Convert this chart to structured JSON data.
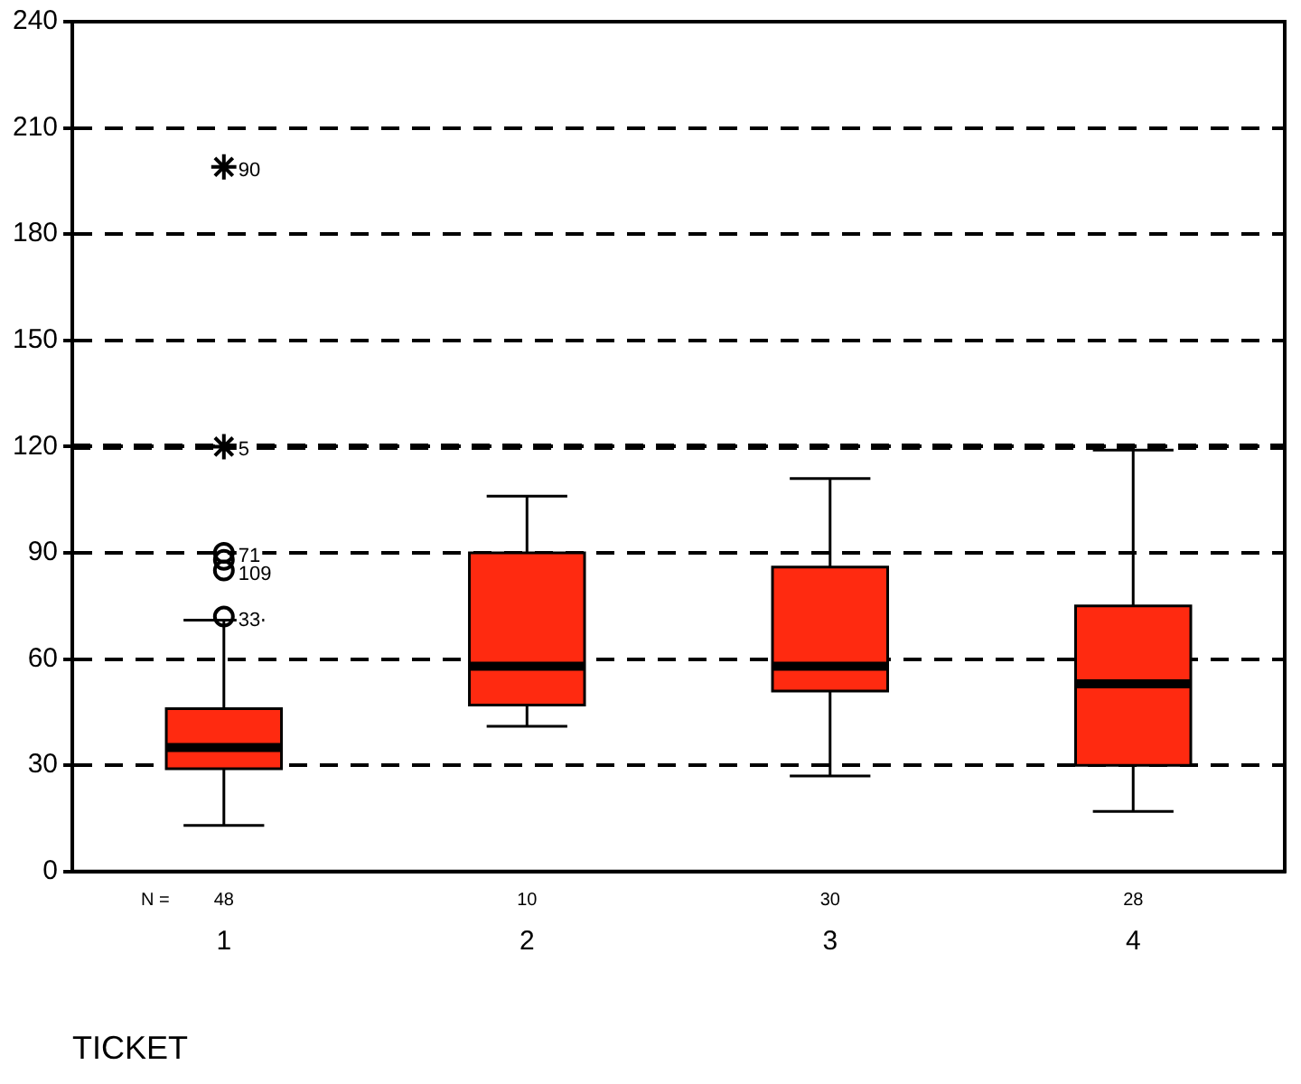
{
  "chart_data": {
    "type": "box",
    "xlabel": "TICKET",
    "categories": [
      "1",
      "2",
      "3",
      "4"
    ],
    "color": "#ff2a10",
    "boxes": [
      {
        "low": 13,
        "q1": 29,
        "median": 35,
        "q3": 46,
        "high": 71
      },
      {
        "low": 41,
        "q1": 47,
        "median": 58,
        "q3": 90,
        "high": 106
      },
      {
        "low": 27,
        "q1": 51,
        "median": 58,
        "q3": 86,
        "high": 111
      },
      {
        "low": 17,
        "q1": 30,
        "median": 53,
        "q3": 75,
        "high": 119
      }
    ],
    "series": [
      {
        "type": "scatter",
        "marker": "circle",
        "color": "#000000",
        "x": [
          "1",
          "1",
          "1",
          "1"
        ],
        "values": [
          72,
          85,
          88,
          90
        ]
      },
      {
        "type": "scatter",
        "marker": "cross",
        "color": "#000000",
        "x": [
          "1",
          "1"
        ],
        "values": [
          120,
          199
        ]
      }
    ],
    "ylim": [
      0,
      240
    ],
    "yticks": [
      0,
      30,
      60,
      90,
      120,
      150,
      180,
      210,
      240
    ],
    "grid": "y",
    "line_style": "dashed",
    "ref_lines": [
      {
        "axis": "y",
        "value": 120
      }
    ],
    "annotations": [
      "N =",
      "48",
      "10",
      "30",
      "28",
      {
        "text": "90",
        "x": "1",
        "y": 199
      },
      {
        "text": "5",
        "x": "1",
        "y": 120
      },
      {
        "text": "71",
        "x": "1",
        "y": 90
      },
      {
        "text": "109",
        "x": "1",
        "y": 85
      },
      {
        "text": "33",
        "x": "1",
        "y": 72
      }
    ]
  }
}
